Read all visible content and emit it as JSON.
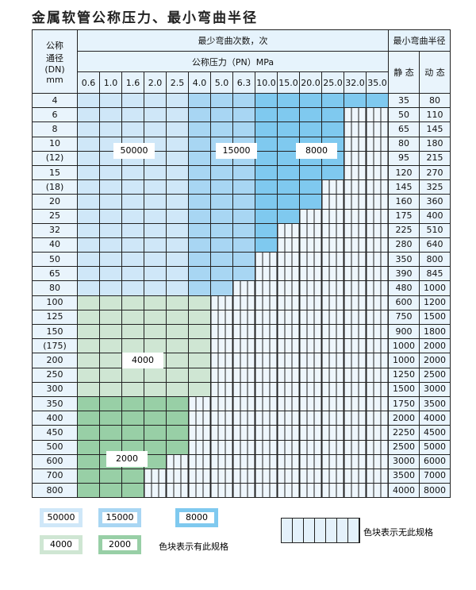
{
  "title": "金属软管公称压力、最小弯曲半径",
  "header": {
    "dn_label": [
      "公称",
      "通径",
      "(DN)",
      "mm"
    ],
    "cycles_label": "最少弯曲次数，次",
    "pressure_label": "公称压力（PN）MPa",
    "radius_label": "最小弯曲半径",
    "static_label": "静 态",
    "dynamic_label": "动 态",
    "pressures": [
      "0.6",
      "1.0",
      "1.6",
      "2.0",
      "2.5",
      "4.0",
      "5.0",
      "6.3",
      "10.0",
      "15.0",
      "20.0",
      "25.0",
      "32.0",
      "35.0"
    ]
  },
  "rows": [
    {
      "dn": "4",
      "available_columns": 14,
      "static": "35",
      "dynamic": "80"
    },
    {
      "dn": "6",
      "available_columns": 12,
      "static": "50",
      "dynamic": "110"
    },
    {
      "dn": "8",
      "available_columns": 12,
      "static": "65",
      "dynamic": "145"
    },
    {
      "dn": "10",
      "available_columns": 12,
      "static": "80",
      "dynamic": "180"
    },
    {
      "dn": "(12)",
      "available_columns": 12,
      "static": "95",
      "dynamic": "215"
    },
    {
      "dn": "15",
      "available_columns": 12,
      "static": "120",
      "dynamic": "270"
    },
    {
      "dn": "(18)",
      "available_columns": 11,
      "static": "145",
      "dynamic": "325"
    },
    {
      "dn": "20",
      "available_columns": 11,
      "static": "160",
      "dynamic": "360"
    },
    {
      "dn": "25",
      "available_columns": 10,
      "static": "175",
      "dynamic": "400"
    },
    {
      "dn": "32",
      "available_columns": 9,
      "static": "225",
      "dynamic": "510"
    },
    {
      "dn": "40",
      "available_columns": 9,
      "static": "280",
      "dynamic": "640"
    },
    {
      "dn": "50",
      "available_columns": 8,
      "static": "350",
      "dynamic": "800"
    },
    {
      "dn": "65",
      "available_columns": 8,
      "static": "390",
      "dynamic": "845"
    },
    {
      "dn": "80",
      "available_columns": 7,
      "static": "480",
      "dynamic": "1000"
    },
    {
      "dn": "100",
      "available_columns": 6,
      "cycles": "4000",
      "static": "600",
      "dynamic": "1200"
    },
    {
      "dn": "125",
      "available_columns": 6,
      "cycles": "4000",
      "static": "750",
      "dynamic": "1500"
    },
    {
      "dn": "150",
      "available_columns": 6,
      "cycles": "4000",
      "static": "900",
      "dynamic": "1800"
    },
    {
      "dn": "(175)",
      "available_columns": 6,
      "cycles": "4000",
      "static": "1000",
      "dynamic": "2000"
    },
    {
      "dn": "200",
      "available_columns": 6,
      "cycles": "4000",
      "static": "1000",
      "dynamic": "2000"
    },
    {
      "dn": "250",
      "available_columns": 6,
      "cycles": "4000",
      "static": "1250",
      "dynamic": "2500"
    },
    {
      "dn": "300",
      "available_columns": 6,
      "cycles": "4000",
      "static": "1500",
      "dynamic": "3000"
    },
    {
      "dn": "350",
      "available_columns": 5,
      "cycles": "2000",
      "static": "1750",
      "dynamic": "3500"
    },
    {
      "dn": "400",
      "available_columns": 5,
      "cycles": "2000",
      "static": "2000",
      "dynamic": "4000"
    },
    {
      "dn": "450",
      "available_columns": 5,
      "cycles": "2000",
      "static": "2250",
      "dynamic": "4500"
    },
    {
      "dn": "500",
      "available_columns": 5,
      "cycles": "2000",
      "static": "2500",
      "dynamic": "5000"
    },
    {
      "dn": "600",
      "available_columns": 4,
      "cycles": "2000",
      "static": "3000",
      "dynamic": "6000"
    },
    {
      "dn": "700",
      "available_columns": 3,
      "cycles": "2000",
      "static": "3500",
      "dynamic": "7000"
    },
    {
      "dn": "800",
      "available_columns": 3,
      "cycles": "2000",
      "static": "4000",
      "dynamic": "8000"
    }
  ],
  "region_labels": {
    "c50000": "50000",
    "c15000": "15000",
    "c8000": "8000",
    "c4000": "4000",
    "c2000": "2000"
  },
  "colors": {
    "c50000": "#cfe7f8",
    "c15000": "#a8d6f3",
    "c8000": "#7fc9ef",
    "c4000": "#cfe6d3",
    "c2000": "#98cfa6",
    "empty": "#eef6fc"
  },
  "legend": {
    "items": [
      "50000",
      "15000",
      "8000",
      "4000",
      "2000"
    ],
    "has_spec_text": "色块表示有此规格",
    "no_spec_text": "色块表示无此规格"
  }
}
